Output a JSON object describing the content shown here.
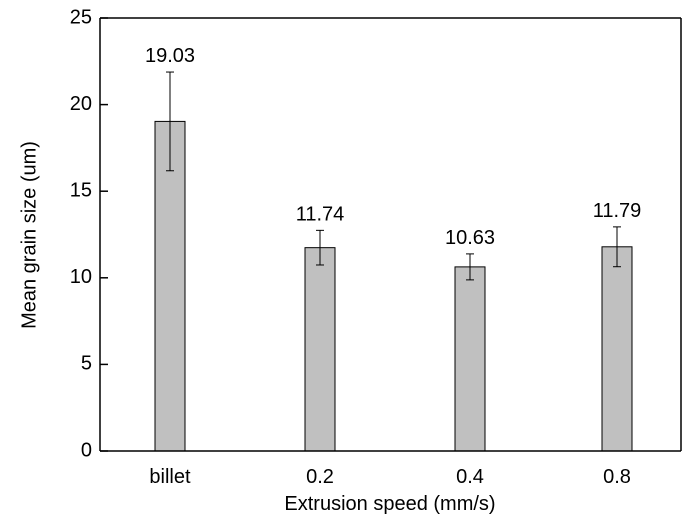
{
  "chart_data": {
    "type": "bar",
    "x_label": "Extrusion speed (mm/s)",
    "y_label": "Mean grain size (um)",
    "categories": [
      "billet",
      "0.2",
      "0.4",
      "0.8"
    ],
    "values": [
      19.03,
      11.74,
      10.63,
      11.79
    ],
    "errors": [
      2.85,
      1.0,
      0.75,
      1.15
    ],
    "color": "#c0c0c0",
    "ylim": [
      0,
      25
    ],
    "yticks": [
      0,
      5,
      10,
      15,
      20,
      25
    ],
    "grid": false
  }
}
